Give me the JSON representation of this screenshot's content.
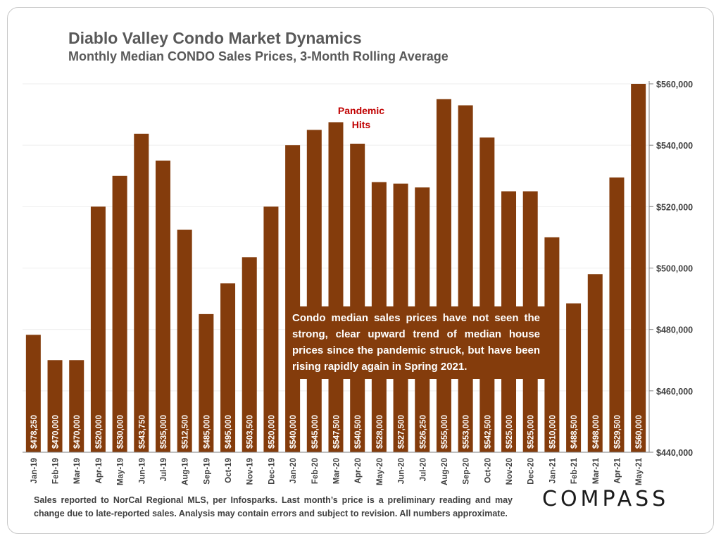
{
  "header": {
    "title": "Diablo Valley Condo Market Dynamics",
    "subtitle": "Monthly Median CONDO Sales Prices, 3-Month Rolling Average"
  },
  "annotation": {
    "pandemic_line1": "Pandemic",
    "pandemic_line2": "Hits"
  },
  "callout": {
    "text": "Condo median sales prices have not seen the strong, clear upward trend of median house prices since the pandemic struck, but have been rising rapidly again in Spring 2021."
  },
  "footer": {
    "text": "Sales reported to NorCal Regional MLS, per Infosparks. Last month’s price is a preliminary reading and may change due to late-reported sales. Analysis may contain errors and subject to revision. All numbers approximate."
  },
  "brand": {
    "logo": "COMPASS"
  },
  "colors": {
    "bar": "#843c0c",
    "annotation": "#c00000",
    "axis_text": "#404040",
    "grid": "#eeeeee"
  },
  "chart_data": {
    "type": "bar",
    "categories": [
      "Jan-19",
      "Feb-19",
      "Mar-19",
      "Apr-19",
      "May-19",
      "Jun-19",
      "Jul-19",
      "Aug-19",
      "Sep-19",
      "Oct-19",
      "Nov-19",
      "Dec-19",
      "Jan-20",
      "Feb-20",
      "Mar-20",
      "Apr-20",
      "May-20",
      "Jun-20",
      "Jul-20",
      "Aug-20",
      "Sep-20",
      "Oct-20",
      "Nov-20",
      "Dec-20",
      "Jan-21",
      "Feb-21",
      "Mar-21",
      "Apr-21",
      "May-21"
    ],
    "values": [
      478250,
      470000,
      470000,
      520000,
      530000,
      543750,
      535000,
      512500,
      485000,
      495000,
      503500,
      520000,
      540000,
      545000,
      547500,
      540500,
      528000,
      527500,
      526250,
      555000,
      553000,
      542500,
      525000,
      525000,
      510000,
      488500,
      498000,
      529500,
      560000
    ],
    "data_labels": [
      "$478,250",
      "$470,000",
      "$470,000",
      "$520,000",
      "$530,000",
      "$543,750",
      "$535,000",
      "$512,500",
      "$485,000",
      "$495,000",
      "$503,500",
      "$520,000",
      "$540,000",
      "$545,000",
      "$547,500",
      "$540,500",
      "$528,000",
      "$527,500",
      "$526,250",
      "$555,000",
      "$553,000",
      "$542,500",
      "$525,000",
      "$525,000",
      "$510,000",
      "$488,500",
      "$498,000",
      "$529,500",
      "$560,000"
    ],
    "ylim": [
      440000,
      560000
    ],
    "yticks": [
      440000,
      460000,
      480000,
      500000,
      520000,
      540000,
      560000
    ],
    "ytick_labels": [
      "$440,000",
      "$460,000",
      "$480,000",
      "$500,000",
      "$520,000",
      "$540,000",
      "$560,000"
    ],
    "y_axis_side": "right",
    "grid": true
  }
}
